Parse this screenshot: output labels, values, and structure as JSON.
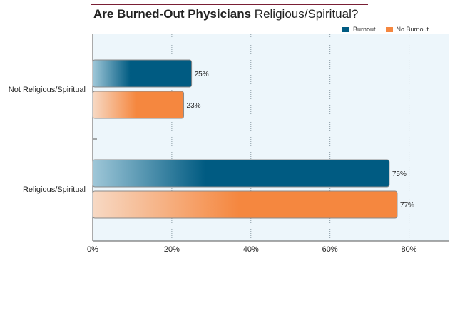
{
  "chart_data": {
    "type": "bar",
    "orientation": "horizontal",
    "title_bold": "Are Burned-Out Physicians",
    "title_rest": "Religious/Spiritual?",
    "categories": [
      "Not Religious/Spiritual",
      "Religious/Spiritual"
    ],
    "series": [
      {
        "name": "Burnout",
        "color": "#005b82",
        "values": [
          25,
          75
        ],
        "labels": [
          "25%",
          "75%"
        ]
      },
      {
        "name": "No Burnout",
        "color": "#f5873f",
        "values": [
          23,
          77
        ],
        "labels": [
          "23%",
          "77%"
        ]
      }
    ],
    "xlim": [
      0,
      90
    ],
    "xticks": [
      0,
      20,
      40,
      60,
      80
    ],
    "xtick_labels": [
      "0%",
      "20%",
      "40%",
      "60%",
      "80%"
    ],
    "grid": true,
    "legend_position": "top-right"
  }
}
